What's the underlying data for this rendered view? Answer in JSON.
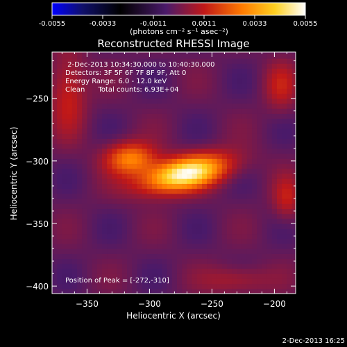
{
  "colorbar": {
    "tick_labels": [
      "-0.0055",
      "-0.0033",
      "-0.0011",
      "0.0011",
      "0.0033",
      "0.0055"
    ],
    "tick_values": [
      -0.0055,
      -0.0033,
      -0.0011,
      0.0011,
      0.0033,
      0.0055
    ],
    "range": [
      -0.0055,
      0.0055
    ],
    "units_label": "(photons cm⁻² s⁻¹ asec⁻²)"
  },
  "chart_data": {
    "type": "heatmap",
    "title": "Reconstructed RHESSI Image",
    "xlabel": "Heliocentric X (arcsec)",
    "ylabel": "Heliocentric Y (arcsec)",
    "xlim": [
      -378,
      -183
    ],
    "ylim": [
      -406,
      -213
    ],
    "x_ticks": [
      -350,
      -300,
      -250,
      -200
    ],
    "x_tick_labels": [
      "−350",
      "−300",
      "−250",
      "−200"
    ],
    "y_ticks": [
      -250,
      -300,
      -350,
      -400
    ],
    "y_tick_labels": [
      "−250",
      "−300",
      "−350",
      "−400"
    ],
    "peak_position": [
      -272,
      -310
    ],
    "peak_value": 0.0055,
    "colormap": "blue-black-purple-red-orange-yellow-white",
    "info_lines": [
      " 2-Dec-2013 10:34:30.000 to 10:40:30.000",
      "Detectors: 3F 5F 6F 7F 8F 9F, Att 0",
      "Energy Range: 6.0 - 12.0 keV",
      "Clean      Total counts: 6.93E+04"
    ],
    "peak_label": "Position of Peak = [-272,-310]"
  },
  "footer_timestamp": "2-Dec-2013 16:25"
}
